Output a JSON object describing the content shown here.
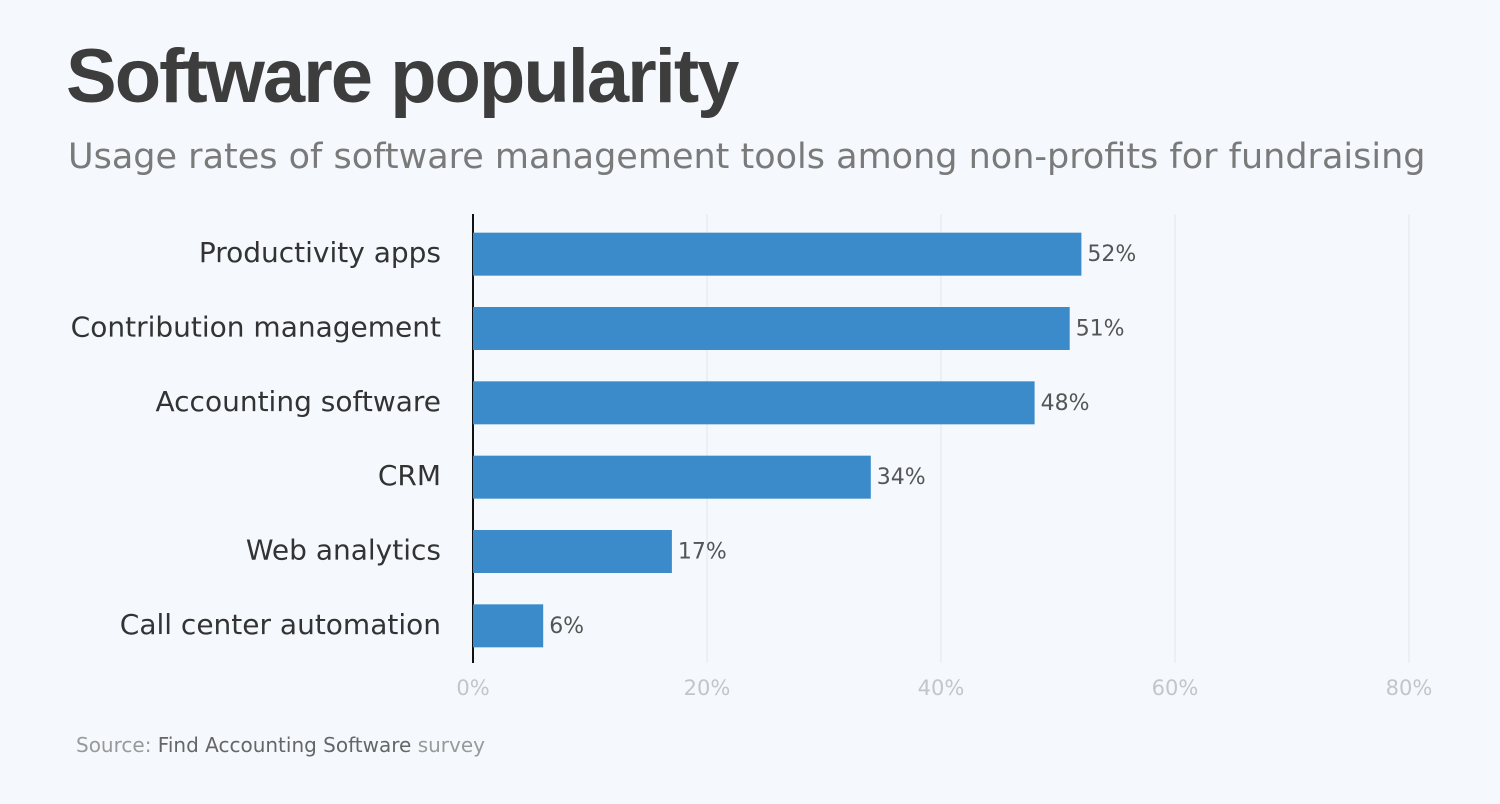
{
  "chart_data": {
    "type": "barh",
    "title": "Software popularity",
    "subtitle": "Usage rates of software management tools among non-profits for fundraising",
    "categories": [
      "Productivity apps",
      "Contribution management",
      "Accounting software",
      "CRM",
      "Web analytics",
      "Call center automation"
    ],
    "values": [
      52,
      51,
      48,
      34,
      17,
      6
    ],
    "value_labels": [
      "52%",
      "51%",
      "48%",
      "34%",
      "17%",
      "6%"
    ],
    "color": "#3b8bca",
    "xlim": [
      0,
      80
    ],
    "xticks": [
      {
        "value": 0,
        "label": "0%"
      },
      {
        "value": 20,
        "label": "20%"
      },
      {
        "value": 40,
        "label": "40%"
      },
      {
        "value": 60,
        "label": "60%"
      },
      {
        "value": 80,
        "label": "80%"
      }
    ],
    "grid": true,
    "source": {
      "prefix": "Source:",
      "name": "Find Accounting Software",
      "suffix": "survey"
    }
  }
}
